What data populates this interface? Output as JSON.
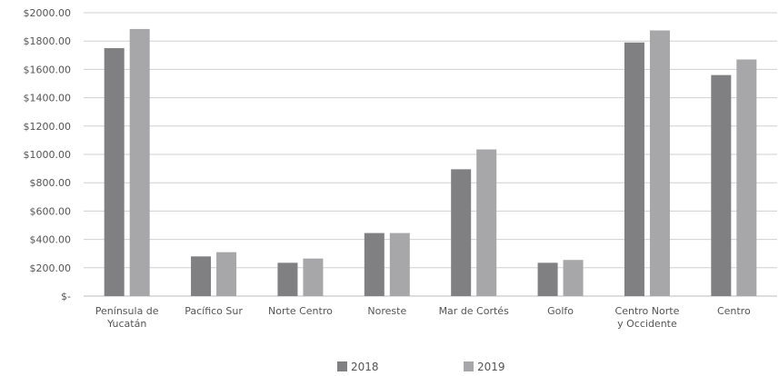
{
  "chart_data": {
    "type": "bar",
    "title": "",
    "xlabel": "",
    "ylabel": "",
    "categories": [
      [
        "Península de",
        "Yucatán"
      ],
      [
        "Pacífico Sur"
      ],
      [
        "Norte Centro"
      ],
      [
        "Noreste"
      ],
      [
        "Mar de Cortés"
      ],
      [
        "Golfo"
      ],
      [
        "Centro Norte",
        "y Occidente"
      ],
      [
        "Centro"
      ]
    ],
    "series": [
      {
        "name": "2018",
        "color": "#808083",
        "values": [
          1750,
          280,
          235,
          445,
          895,
          235,
          1790,
          1560
        ]
      },
      {
        "name": "2019",
        "color": "#a7a7aa",
        "values": [
          1885,
          310,
          265,
          445,
          1035,
          255,
          1875,
          1670
        ]
      }
    ],
    "ylim": [
      0,
      2000
    ],
    "yticks": [
      0,
      200,
      400,
      600,
      800,
      1000,
      1200,
      1400,
      1600,
      1800,
      2000
    ],
    "ytick_labels": [
      "$-",
      "$200.00",
      "$400.00",
      "$600.00",
      "$800.00",
      "$1000.00",
      "$1200.00",
      "$1400.00",
      "$1600.00",
      "$1800.00",
      "$2000.00"
    ],
    "grid": true,
    "legend": "bottom-center"
  }
}
